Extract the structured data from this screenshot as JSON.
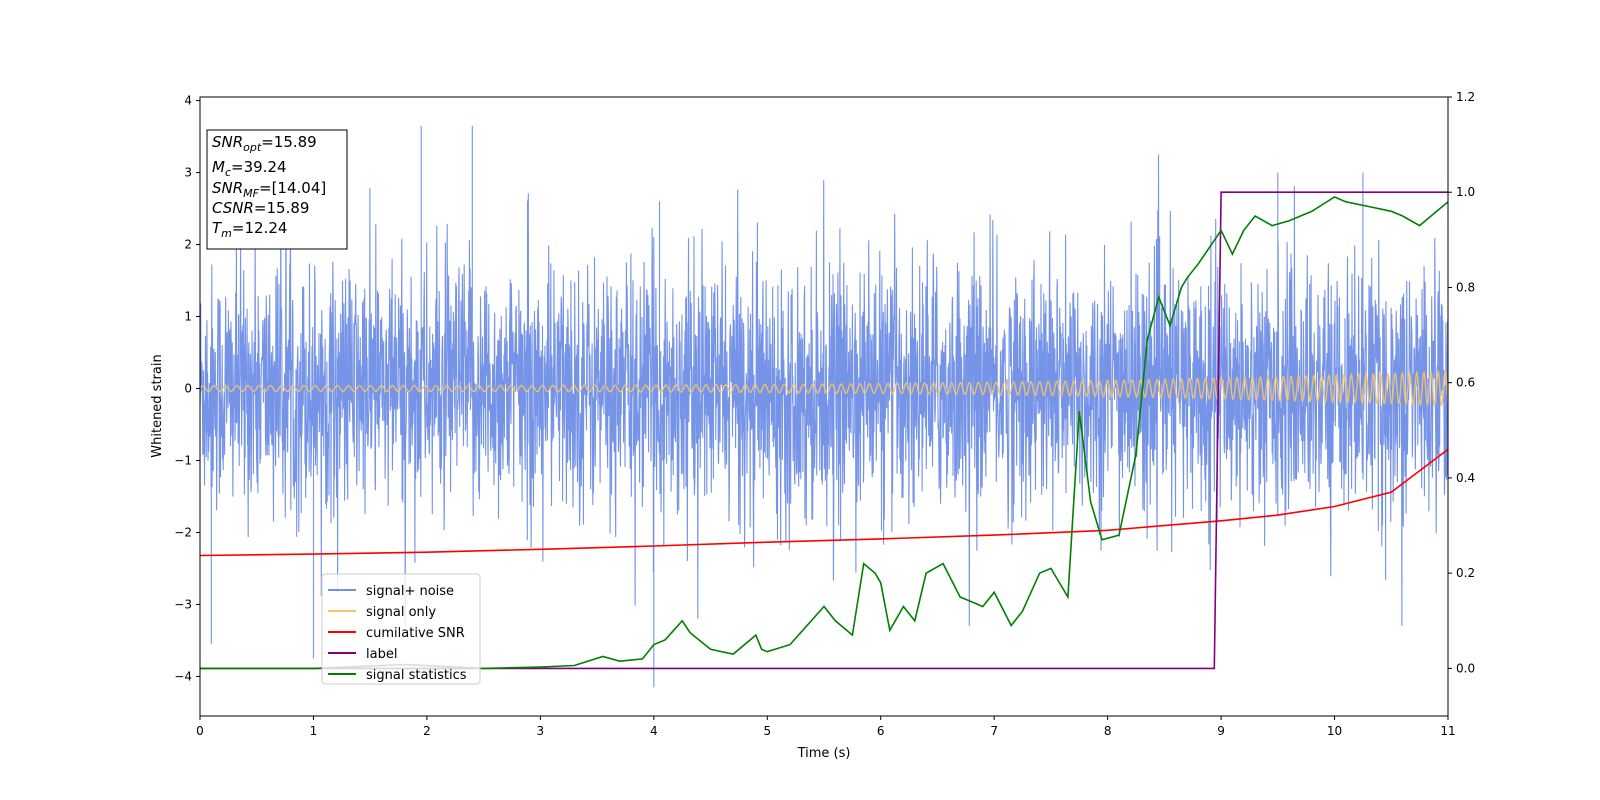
{
  "chart_data": {
    "type": "line",
    "xlabel": "Time (s)",
    "ylabel": "Whitened strain",
    "xlim": [
      0,
      11
    ],
    "ylim": [
      -4.55,
      4.05
    ],
    "y2lim": [
      -0.1,
      1.2
    ],
    "x_ticks": [
      0,
      1,
      2,
      3,
      4,
      5,
      6,
      7,
      8,
      9,
      10,
      11
    ],
    "y_ticks": [
      -4,
      -3,
      -2,
      -1,
      0,
      1,
      2,
      3,
      4
    ],
    "y2_ticks": [
      0.0,
      0.2,
      0.4,
      0.6,
      0.8,
      1.0,
      1.2
    ],
    "grid": false,
    "legend_placement": "lower-left",
    "series": [
      {
        "name": "signal+ noise",
        "axis": "left",
        "color": "#6f8ee6",
        "style": "noise",
        "sigma": 0.85,
        "extremes": [
          [
            1.95,
            3.65
          ],
          [
            2.4,
            3.65
          ],
          [
            1.0,
            -3.75
          ],
          [
            0.1,
            -3.55
          ],
          [
            4.0,
            -4.15
          ],
          [
            4.05,
            2.6
          ],
          [
            9.5,
            3.0
          ],
          [
            10.25,
            3.0
          ]
        ]
      },
      {
        "name": "signal only",
        "axis": "left",
        "color": "#f5c26b",
        "style": "chirp",
        "amp_start": 0.04,
        "amp_end": 0.24
      },
      {
        "name": "cumilative SNR",
        "axis": "right",
        "color": "#ff0000",
        "x": [
          0,
          1,
          2,
          3,
          4,
          5,
          6,
          7,
          8,
          9,
          9.5,
          10,
          10.5,
          11
        ],
        "y": [
          0.237,
          0.24,
          0.244,
          0.25,
          0.257,
          0.265,
          0.272,
          0.28,
          0.29,
          0.31,
          0.322,
          0.34,
          0.37,
          0.46
        ]
      },
      {
        "name": "label",
        "axis": "right",
        "color": "#800080",
        "x": [
          0,
          8.94,
          9.0,
          11
        ],
        "y": [
          0,
          0,
          1.0,
          1.0
        ]
      },
      {
        "name": "signal statistics",
        "axis": "right",
        "color": "#008000",
        "x": [
          0,
          1,
          1.8,
          2.5,
          3.0,
          3.3,
          3.55,
          3.7,
          3.9,
          4.0,
          4.1,
          4.25,
          4.32,
          4.5,
          4.7,
          4.9,
          4.95,
          5.0,
          5.2,
          5.5,
          5.6,
          5.75,
          5.85,
          5.95,
          6.0,
          6.08,
          6.2,
          6.3,
          6.4,
          6.55,
          6.7,
          6.9,
          7.0,
          7.15,
          7.25,
          7.4,
          7.5,
          7.65,
          7.75,
          7.85,
          7.95,
          8.1,
          8.25,
          8.35,
          8.45,
          8.55,
          8.65,
          8.7,
          8.8,
          9.0,
          9.1,
          9.2,
          9.3,
          9.45,
          9.6,
          9.8,
          10.0,
          10.1,
          10.3,
          10.5,
          10.6,
          10.75,
          10.9,
          11.0
        ],
        "y": [
          0.0,
          0.0,
          0.008,
          0.0,
          0.003,
          0.006,
          0.025,
          0.015,
          0.02,
          0.05,
          0.06,
          0.1,
          0.075,
          0.04,
          0.03,
          0.07,
          0.04,
          0.035,
          0.05,
          0.13,
          0.1,
          0.07,
          0.22,
          0.2,
          0.18,
          0.08,
          0.13,
          0.1,
          0.2,
          0.22,
          0.15,
          0.13,
          0.16,
          0.09,
          0.12,
          0.2,
          0.21,
          0.15,
          0.54,
          0.35,
          0.27,
          0.28,
          0.45,
          0.69,
          0.78,
          0.72,
          0.8,
          0.82,
          0.85,
          0.92,
          0.87,
          0.92,
          0.95,
          0.93,
          0.94,
          0.96,
          0.99,
          0.98,
          0.97,
          0.96,
          0.95,
          0.93,
          0.96,
          0.98
        ]
      }
    ],
    "annotation": [
      {
        "pre": "SNR",
        "sub": "opt",
        "post": "=15.89"
      },
      {
        "pre": "M",
        "sub": "c",
        "post": "=39.24"
      },
      {
        "pre": "SNR",
        "sub": "MF",
        "post": "=[14.04]"
      },
      {
        "pre": "CSNR",
        "sub": "",
        "post": "=15.89"
      },
      {
        "pre": "T",
        "sub": "m",
        "post": "=12.24"
      }
    ]
  }
}
